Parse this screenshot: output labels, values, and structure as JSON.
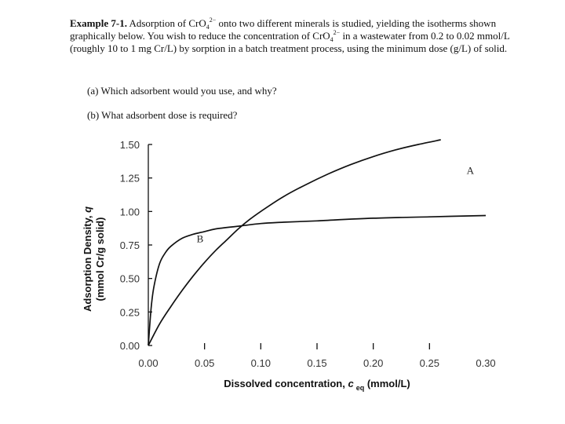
{
  "problem": {
    "example_label": "Example 7-1.",
    "text_1": " Adsorption of CrO",
    "sub_1": "4",
    "sup_1": "2−",
    "text_2": " onto two different minerals is studied, yielding the isotherms shown graphically below. You wish to reduce the concentration of CrO",
    "sub_2": "4",
    "sup_2": "2−",
    "text_3": " in a wastewater from 0.2 to 0.02 mmol/L (roughly 10 to 1 mg Cr/L) by sorption in a batch treatment process, using the minimum dose (g/L) of solid.",
    "question_a": "(a) Which adsorbent would you use, and why?",
    "question_b": "(b) What adsorbent dose is required?"
  },
  "chart_data": {
    "type": "line",
    "xlabel_main": "Dissolved concentration, ",
    "xlabel_symbol": "c",
    "xlabel_sub": "eq",
    "xlabel_unit": " (mmol/L)",
    "ylabel_line1_main": "Adsorption Density, ",
    "ylabel_line1_symbol": "q",
    "ylabel_line2": "(mmol Cr/g solid)",
    "xlim": [
      0,
      0.3
    ],
    "ylim": [
      0,
      1.5
    ],
    "xticks": [
      "0.00",
      "0.05",
      "0.10",
      "0.15",
      "0.20",
      "0.25",
      "0.30"
    ],
    "yticks": [
      "0.00",
      "0.25",
      "0.50",
      "0.75",
      "1.00",
      "1.25",
      "1.50"
    ],
    "series": [
      {
        "name": "A",
        "x": [
          0,
          0.01,
          0.02,
          0.03,
          0.04,
          0.05,
          0.06,
          0.07,
          0.08,
          0.09,
          0.1,
          0.12,
          0.14,
          0.16,
          0.18,
          0.2,
          0.22,
          0.24,
          0.26
        ],
        "y": [
          0,
          0.16,
          0.29,
          0.41,
          0.52,
          0.62,
          0.71,
          0.79,
          0.87,
          0.94,
          1.0,
          1.11,
          1.2,
          1.28,
          1.35,
          1.41,
          1.46,
          1.5,
          1.54
        ]
      },
      {
        "name": "B",
        "x": [
          0,
          0.0025,
          0.005,
          0.01,
          0.015,
          0.02,
          0.03,
          0.04,
          0.05,
          0.06,
          0.08,
          0.1,
          0.12,
          0.15,
          0.2,
          0.25,
          0.3
        ],
        "y": [
          0,
          0.28,
          0.44,
          0.61,
          0.69,
          0.74,
          0.8,
          0.83,
          0.85,
          0.87,
          0.89,
          0.91,
          0.92,
          0.93,
          0.95,
          0.96,
          0.97
        ]
      }
    ],
    "grid": false,
    "legend": "none",
    "line_color": "#111111"
  }
}
